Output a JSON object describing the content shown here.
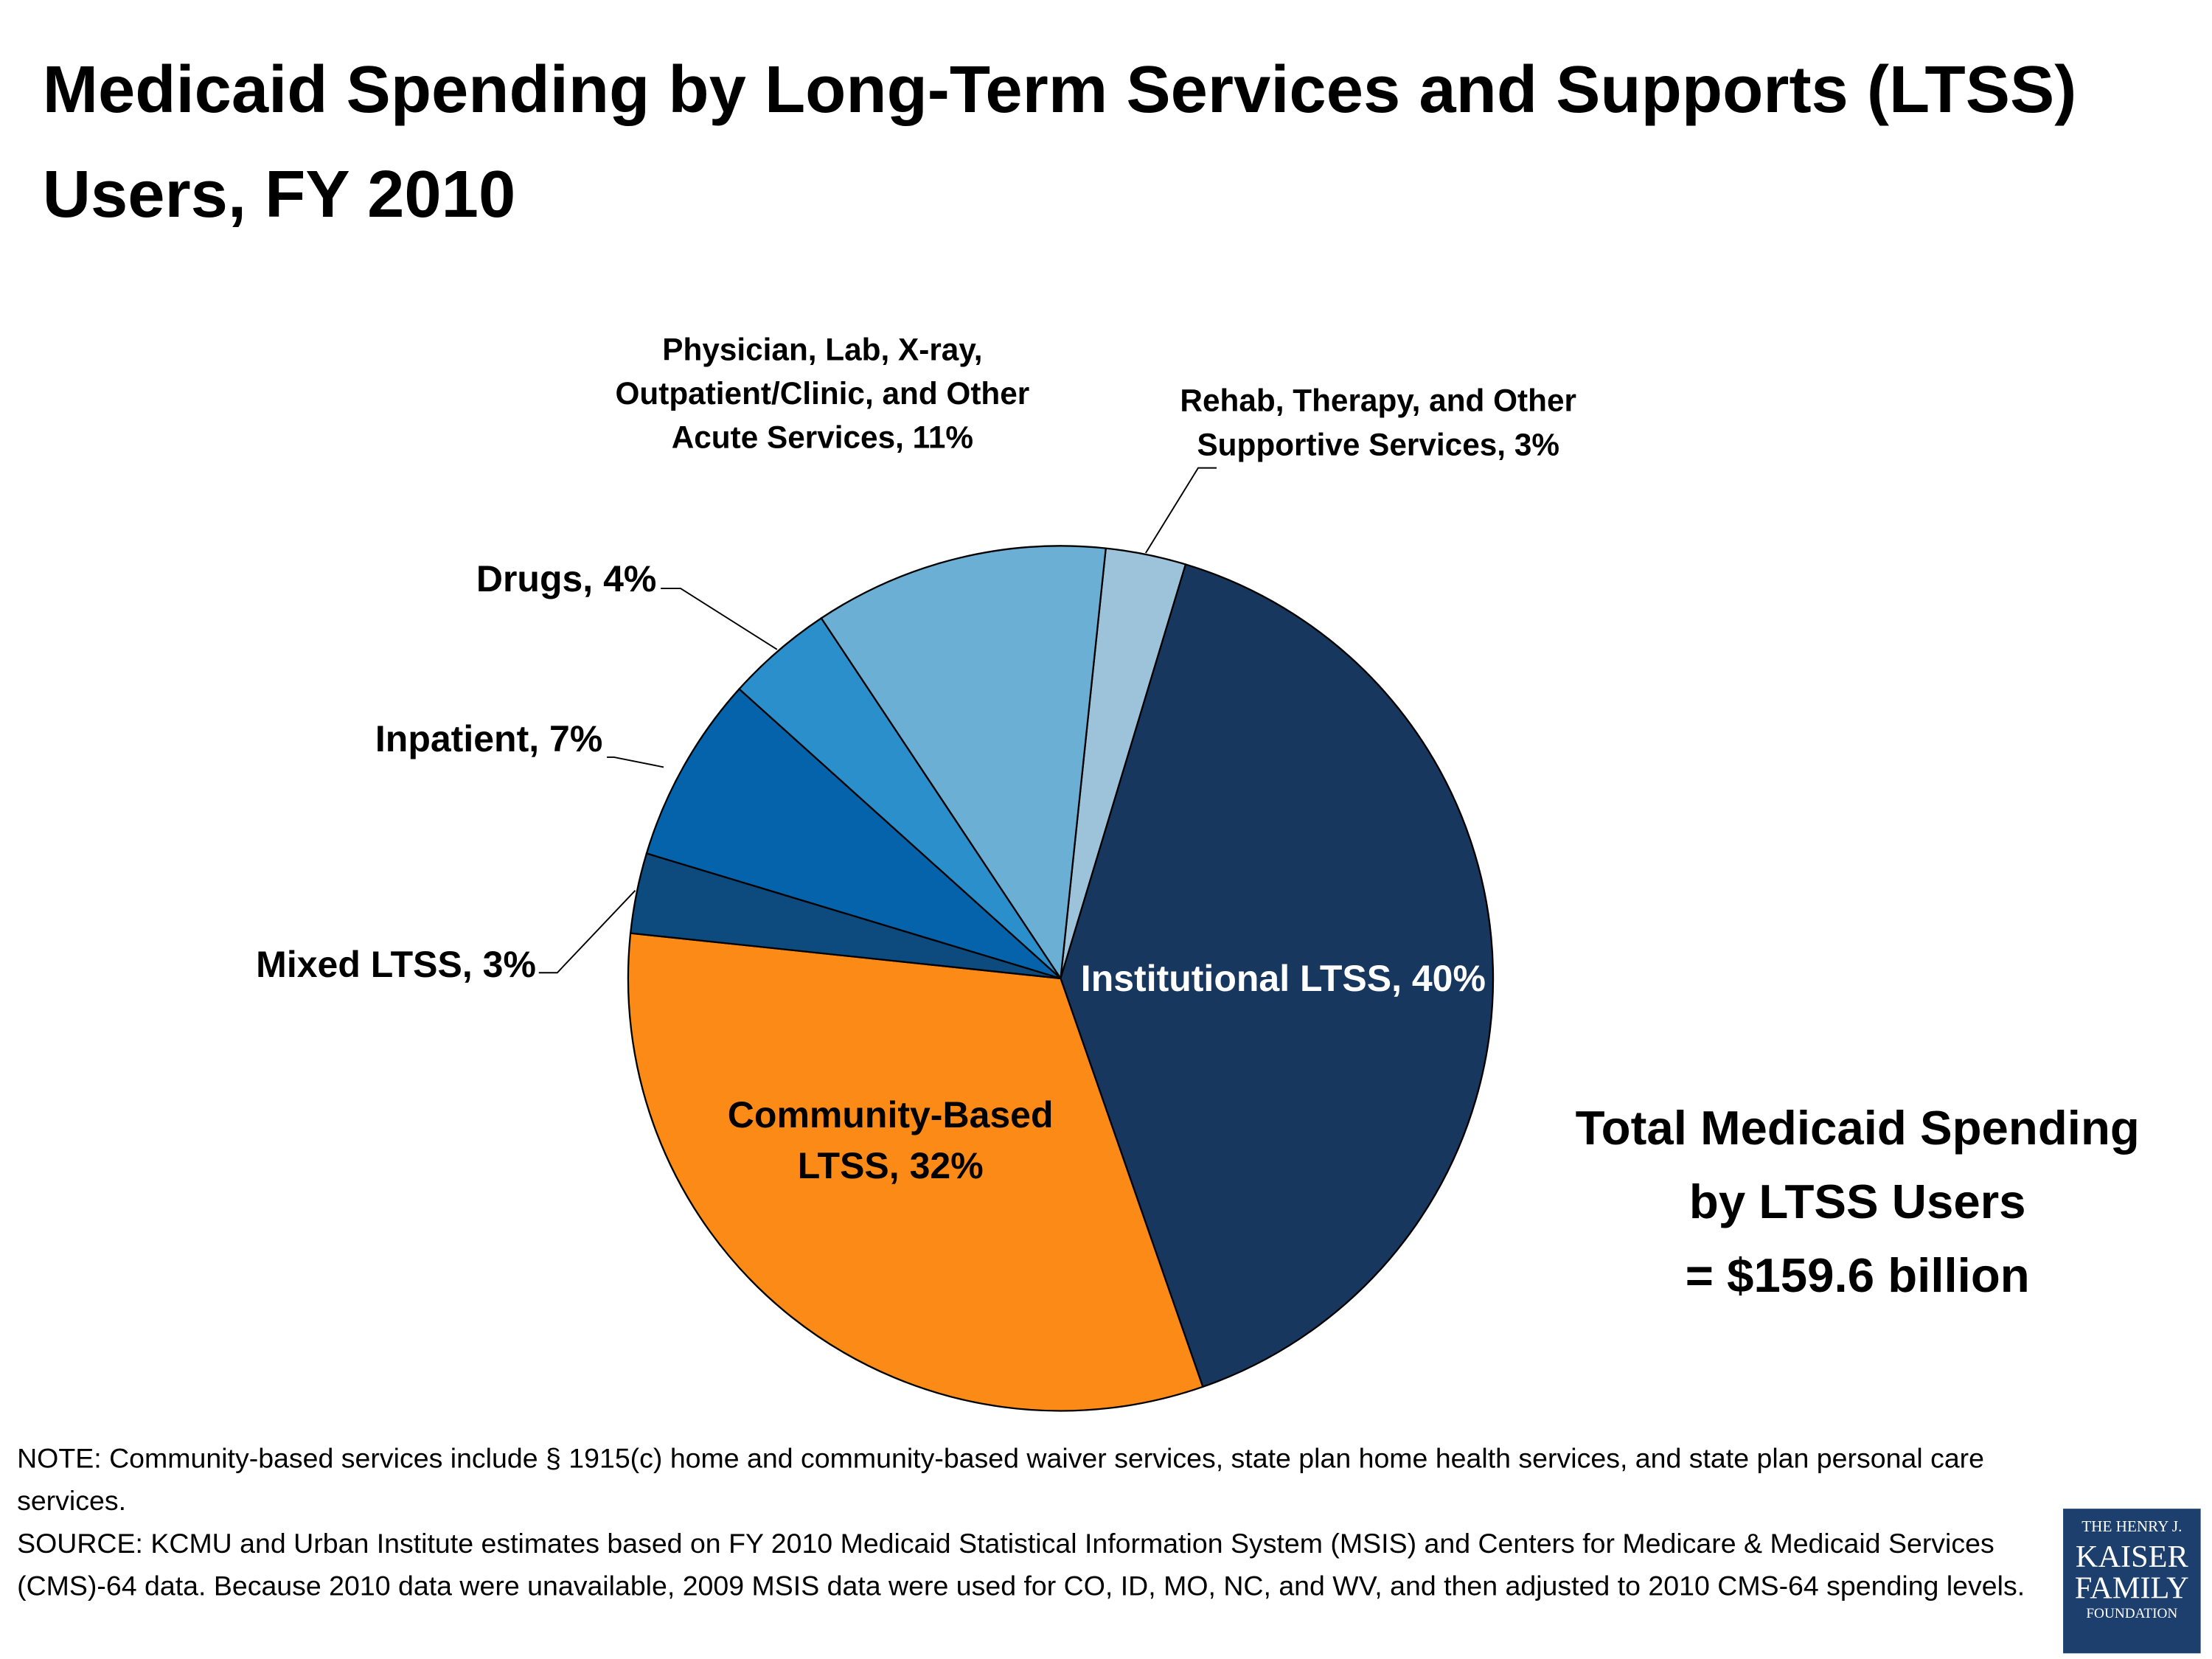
{
  "chart_data": {
    "type": "pie",
    "title": "Medicaid Spending by Long-Term Services and Supports (LTSS) Users, FY 2010",
    "categories": [
      "Rehab, Therapy, and Other Supportive Services,",
      "Institutional LTSS,",
      "Community-Based LTSS,",
      "Mixed LTSS,",
      "Inpatient,",
      "Drugs,",
      "Physician, Lab, X-ray, Outpatient/Clinic, and Other Acute Services,"
    ],
    "values": [
      3,
      40,
      32,
      3,
      7,
      4,
      11
    ],
    "value_labels": [
      "3%",
      "40%",
      "32%",
      "3%",
      "7%",
      "4%",
      "11%"
    ],
    "colors": [
      "#9dc3da",
      "#17375e",
      "#fb8a16",
      "#0d4a7d",
      "#0463aa",
      "#2a8fcb",
      "#6cafd4"
    ],
    "annotation": [
      "Total Medicaid Spending",
      "by LTSS Users",
      "= $159.6 billion"
    ],
    "note": "NOTE: Community-based services include § 1915(c) home and community-based waiver services, state plan home health services, and state plan personal care services.",
    "source": "SOURCE: KCMU and Urban Institute estimates based on FY 2010 Medicaid Statistical Information System (MSIS) and Centers for Medicare & Medicaid Services (CMS)-64 data. Because 2010 data were unavailable, 2009 MSIS data were used for CO, ID, MO, NC, and WV, and then adjusted to 2010 CMS-64 spending levels.",
    "logo": [
      "THE HENRY J.",
      "KAISER",
      "FAMILY",
      "FOUNDATION"
    ]
  }
}
